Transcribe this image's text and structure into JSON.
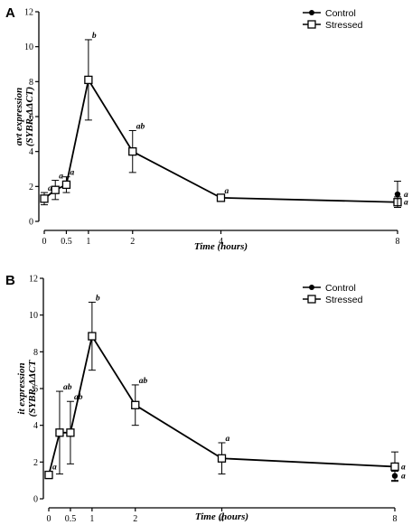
{
  "chart_data": [
    {
      "type": "line",
      "panel_label": "A",
      "ylabel_line1": "avt expression",
      "ylabel_line2": "(SYBR-ΔΔCT)",
      "xlabel": "Time (hours)",
      "ylim": [
        0,
        12
      ],
      "yticks": [
        0,
        2,
        4,
        6,
        8,
        10,
        12
      ],
      "xticks": [
        0,
        0.5,
        1,
        2,
        4,
        8
      ],
      "xtick_labels": [
        "0",
        "0.5",
        "1",
        "2",
        "4",
        "8"
      ],
      "legend": [
        "Control",
        "Stressed"
      ],
      "legend_position": "top-right",
      "series": [
        {
          "name": "Stressed",
          "marker": "open-square",
          "connected": true,
          "x": [
            0,
            0.25,
            0.5,
            1,
            2,
            4,
            8
          ],
          "y": [
            1.3,
            1.8,
            2.1,
            8.1,
            4.0,
            1.35,
            1.1
          ],
          "err": [
            0.35,
            0.55,
            0.45,
            2.3,
            1.2,
            0.15,
            0.3
          ],
          "labels": [
            "a",
            "a",
            "a",
            "b",
            "ab",
            "a",
            "a"
          ]
        },
        {
          "name": "Control",
          "marker": "filled-circle",
          "connected": false,
          "x": [
            8
          ],
          "y": [
            1.55
          ],
          "err": [
            0.75
          ],
          "labels": [
            "a"
          ]
        }
      ]
    },
    {
      "type": "line",
      "panel_label": "B",
      "ylabel_line1": "it expression",
      "ylabel_line2": "(SYBR-ΔΔCT",
      "xlabel": "Time (hours)",
      "ylim": [
        0,
        12
      ],
      "yticks": [
        0,
        2,
        4,
        6,
        8,
        10,
        12
      ],
      "xticks": [
        0,
        0.5,
        1,
        2,
        4,
        8
      ],
      "xtick_labels": [
        "0",
        "0.5",
        "1",
        "2",
        "4",
        "8"
      ],
      "legend": [
        "Control",
        "Stressed"
      ],
      "legend_position": "top-right",
      "series": [
        {
          "name": "Stressed",
          "marker": "open-square",
          "connected": true,
          "x": [
            0,
            0.25,
            0.5,
            1,
            2,
            4,
            8
          ],
          "y": [
            1.3,
            3.6,
            3.6,
            8.85,
            5.1,
            2.2,
            1.75
          ],
          "err": [
            0.2,
            2.25,
            1.7,
            1.85,
            1.1,
            0.85,
            0.8
          ],
          "labels": [
            "a",
            "ab",
            "ab",
            "b",
            "ab",
            "a",
            "a"
          ]
        },
        {
          "name": "Control",
          "marker": "filled-circle",
          "connected": false,
          "x": [
            8
          ],
          "y": [
            1.25
          ],
          "err": [
            0.25
          ],
          "labels": [
            "a"
          ]
        }
      ]
    }
  ]
}
